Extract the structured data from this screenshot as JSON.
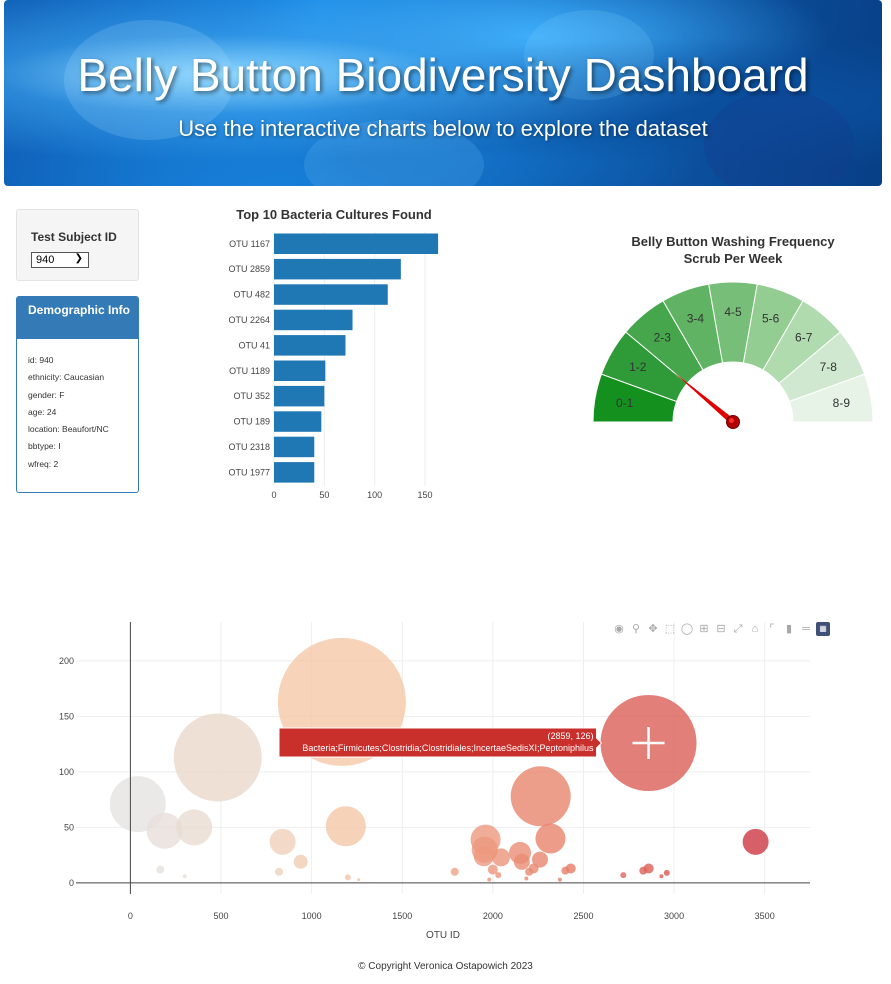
{
  "header": {
    "title": "Belly Button Biodiversity Dashboard",
    "subtitle": "Use the interactive charts below to explore the dataset"
  },
  "selector": {
    "label": "Test Subject ID",
    "selected": "940"
  },
  "demographic": {
    "title": "Demographic Info",
    "lines": [
      "id: 940",
      "ethnicity: Caucasian",
      "gender: F",
      "age: 24",
      "location: Beaufort/NC",
      "bbtype: I",
      "wfreq: 2"
    ]
  },
  "footer": "© Copyright Veronica Ostapowich 2023",
  "chart_data": [
    {
      "type": "bar",
      "orientation": "horizontal",
      "title": "Top 10 Bacteria Cultures Found",
      "categories": [
        "OTU 1167",
        "OTU 2859",
        "OTU 482",
        "OTU 2264",
        "OTU 41",
        "OTU 1189",
        "OTU 352",
        "OTU 189",
        "OTU 2318",
        "OTU 1977"
      ],
      "values": [
        163,
        126,
        113,
        78,
        71,
        51,
        50,
        47,
        40,
        40
      ],
      "xlim": [
        0,
        175
      ],
      "xticks": [
        0,
        50,
        100,
        150
      ],
      "color": "#1f77b4",
      "grid": true
    },
    {
      "type": "gauge",
      "title": [
        "Belly Button Washing Frequency",
        "Scrub Per Week"
      ],
      "min": 0,
      "max": 9,
      "value": 2,
      "segments": [
        "0-1",
        "1-2",
        "2-3",
        "3-4",
        "4-5",
        "5-6",
        "6-7",
        "7-8",
        "8-9"
      ],
      "segment_colors": [
        "#14901f",
        "#2e9a38",
        "#45a64c",
        "#5fb363",
        "#77bf79",
        "#93cd92",
        "#b0dbaf",
        "#cfe8cf",
        "#e8f3e8"
      ],
      "needle_color": "#e00000"
    },
    {
      "type": "scatter",
      "mode": "bubble",
      "xlabel": "OTU ID",
      "xlim": [
        -300,
        3750
      ],
      "ylim": [
        -10,
        235
      ],
      "xticks": [
        0,
        500,
        1000,
        1500,
        2000,
        2500,
        3000,
        3500
      ],
      "yticks": [
        0,
        50,
        100,
        150,
        200
      ],
      "grid": true,
      "colorscale": [
        "#e4e4e4",
        "#f4c8a8",
        "#e8826a",
        "#cc3540"
      ],
      "points": [
        {
          "x": 41,
          "y": 71
        },
        {
          "x": 189,
          "y": 47
        },
        {
          "x": 352,
          "y": 50
        },
        {
          "x": 482,
          "y": 113
        },
        {
          "x": 165,
          "y": 12
        },
        {
          "x": 300,
          "y": 6
        },
        {
          "x": 840,
          "y": 37
        },
        {
          "x": 940,
          "y": 19
        },
        {
          "x": 820,
          "y": 10
        },
        {
          "x": 1167,
          "y": 163
        },
        {
          "x": 1189,
          "y": 51
        },
        {
          "x": 1200,
          "y": 5
        },
        {
          "x": 1260,
          "y": 3
        },
        {
          "x": 1790,
          "y": 10
        },
        {
          "x": 1960,
          "y": 39
        },
        {
          "x": 1955,
          "y": 30
        },
        {
          "x": 1950,
          "y": 24
        },
        {
          "x": 2045,
          "y": 23
        },
        {
          "x": 2000,
          "y": 12
        },
        {
          "x": 2030,
          "y": 7
        },
        {
          "x": 1980,
          "y": 3
        },
        {
          "x": 2150,
          "y": 27
        },
        {
          "x": 2160,
          "y": 19
        },
        {
          "x": 2200,
          "y": 10
        },
        {
          "x": 2185,
          "y": 4
        },
        {
          "x": 2264,
          "y": 78
        },
        {
          "x": 2318,
          "y": 40
        },
        {
          "x": 2260,
          "y": 21
        },
        {
          "x": 2225,
          "y": 13
        },
        {
          "x": 2400,
          "y": 11
        },
        {
          "x": 2430,
          "y": 13
        },
        {
          "x": 2370,
          "y": 3
        },
        {
          "x": 2859,
          "y": 126
        },
        {
          "x": 2720,
          "y": 7
        },
        {
          "x": 2830,
          "y": 11
        },
        {
          "x": 2860,
          "y": 13
        },
        {
          "x": 2960,
          "y": 9
        },
        {
          "x": 2930,
          "y": 6
        },
        {
          "x": 3450,
          "y": 37
        }
      ],
      "sizes": [
        28,
        18,
        18,
        44,
        4,
        2,
        13,
        7,
        4,
        64,
        20,
        3,
        1.5,
        4,
        15,
        13,
        10,
        9,
        5,
        3,
        2,
        11,
        8,
        4,
        2,
        30,
        15,
        8,
        5,
        4,
        5,
        2,
        48,
        3,
        4,
        5,
        3,
        2,
        13
      ],
      "hover": {
        "x": 2859,
        "y": 126,
        "label": "(2859, 126)",
        "text": "Bacteria;Firmicutes;Clostridia;Clostridiales;IncertaeSedisXI;Peptoniphilus"
      }
    }
  ]
}
